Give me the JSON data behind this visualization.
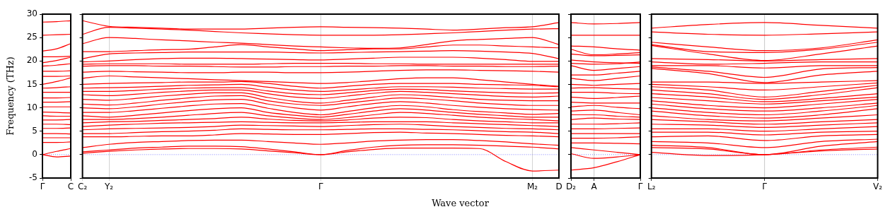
{
  "chart_data": [
    {
      "type": "line",
      "ylabel": "Frequency (THz)",
      "color": "#ff0000",
      "categories": [
        "Γ",
        null,
        "C"
      ],
      "ylim": [
        -5,
        30
      ],
      "yticks": [
        -5,
        0,
        5,
        10,
        15,
        20,
        25,
        30
      ],
      "ref_lines": [
        {
          "axis": "y",
          "value": 0,
          "color": "#8080ff",
          "line_style": "dotted"
        }
      ],
      "series": [
        {
          "values": [
            28.3,
            28.4,
            28.6
          ]
        },
        {
          "values": [
            25.5,
            25.6,
            25.7
          ]
        },
        {
          "values": [
            22.1,
            22.6,
            23.7
          ]
        },
        {
          "values": [
            20.9,
            20.9,
            21.0
          ]
        },
        {
          "values": [
            19.6,
            20.1,
            20.8
          ]
        },
        {
          "values": [
            18.9,
            19.1,
            19.4
          ]
        },
        {
          "values": [
            17.8,
            17.8,
            17.9
          ]
        },
        {
          "values": [
            16.7,
            16.7,
            16.8
          ]
        },
        {
          "values": [
            15.0,
            15.6,
            16.4
          ]
        },
        {
          "values": [
            14.2,
            14.3,
            14.5
          ]
        },
        {
          "values": [
            13.3,
            13.3,
            13.3
          ]
        },
        {
          "values": [
            12.1,
            12.1,
            12.2
          ]
        },
        {
          "values": [
            11.2,
            11.2,
            11.3
          ]
        },
        {
          "values": [
            10.2,
            10.2,
            10.2
          ]
        },
        {
          "values": [
            9.1,
            9.0,
            8.9
          ]
        },
        {
          "values": [
            8.3,
            8.2,
            8.2
          ]
        },
        {
          "values": [
            7.4,
            7.4,
            7.5
          ]
        },
        {
          "values": [
            6.5,
            6.5,
            6.4
          ]
        },
        {
          "values": [
            5.6,
            5.6,
            5.7
          ]
        },
        {
          "values": [
            4.5,
            4.5,
            4.4
          ]
        },
        {
          "values": [
            3.6,
            3.6,
            3.6
          ]
        },
        {
          "values": [
            2.6,
            2.6,
            2.7
          ]
        },
        {
          "values": [
            0,
            0.7,
            1.3
          ]
        },
        {
          "values": [
            0,
            -0.5,
            -0.3
          ]
        }
      ]
    },
    {
      "type": "line",
      "xlabel": "Wave vector",
      "color": "#ff0000",
      "grid": "x",
      "tick_labels": "x",
      "categories": [
        "C₂",
        "Y₂",
        null,
        null,
        null,
        null,
        null,
        null,
        null,
        "Γ",
        null,
        null,
        null,
        null,
        null,
        null,
        null,
        "M₂",
        "D"
      ],
      "ylim": [
        -5,
        30
      ],
      "yticks": [
        -5,
        0,
        5,
        10,
        15,
        20,
        25,
        30
      ],
      "ref_lines": [
        {
          "axis": "y",
          "value": 0,
          "color": "#8080ff",
          "line_style": "dotted"
        }
      ],
      "series": [
        {
          "values": [
            28.6,
            27.4,
            27.2,
            27.0,
            26.8,
            26.8,
            26.8,
            27.0,
            27.2,
            27.3,
            27.2,
            27.1,
            27.0,
            26.8,
            26.6,
            26.8,
            27.1,
            27.3,
            28.2
          ]
        },
        {
          "values": [
            25.7,
            27.2,
            27.0,
            26.8,
            26.6,
            26.3,
            26.0,
            25.8,
            25.6,
            25.5,
            25.5,
            25.5,
            25.6,
            25.8,
            26.0,
            26.3,
            26.6,
            26.8,
            26.9
          ]
        },
        {
          "values": [
            23.7,
            25.0,
            24.8,
            24.5,
            24.3,
            24.0,
            23.8,
            23.5,
            23.2,
            23.0,
            22.8,
            22.7,
            22.8,
            23.5,
            24.3,
            24.6,
            24.8,
            25.0,
            23.5
          ]
        },
        {
          "values": [
            22.0,
            22.0,
            22.2,
            22.4,
            22.5,
            23.0,
            23.5,
            23.0,
            22.6,
            22.2,
            22.4,
            22.6,
            22.6,
            23.0,
            23.4,
            23.4,
            23.2,
            23.0,
            22.8
          ]
        },
        {
          "values": [
            20.5,
            21.5,
            21.7,
            21.8,
            21.9,
            21.9,
            21.9,
            21.9,
            21.8,
            21.7,
            21.8,
            21.9,
            22.0,
            22.1,
            22.2,
            22.1,
            21.9,
            21.6,
            20.5
          ]
        },
        {
          "values": [
            19.8,
            20.0,
            20.3,
            20.5,
            20.6,
            20.6,
            20.5,
            20.4,
            20.3,
            20.2,
            20.4,
            20.6,
            20.8,
            20.8,
            20.8,
            20.6,
            20.3,
            19.9,
            19.9
          ]
        },
        {
          "values": [
            19.3,
            19.4,
            19.4,
            19.4,
            19.3,
            19.3,
            19.3,
            19.4,
            19.5,
            19.5,
            19.5,
            19.4,
            19.4,
            19.3,
            19.3,
            19.3,
            19.3,
            19.3,
            19.3
          ]
        },
        {
          "values": [
            18.9,
            19.0,
            19.0,
            18.9,
            18.9,
            18.8,
            18.7,
            18.7,
            18.8,
            18.8,
            18.9,
            18.9,
            19.0,
            19.0,
            18.9,
            18.9,
            18.8,
            18.8,
            18.9
          ]
        },
        {
          "values": [
            17.6,
            17.8,
            17.7,
            17.6,
            17.5,
            17.5,
            17.6,
            17.6,
            17.5,
            17.5,
            17.6,
            17.8,
            18.0,
            18.1,
            18.1,
            18.0,
            17.9,
            17.8,
            17.6
          ]
        },
        {
          "values": [
            16.3,
            16.8,
            16.6,
            16.4,
            16.2,
            16.0,
            15.8,
            15.6,
            15.4,
            15.2,
            15.4,
            15.8,
            16.2,
            16.4,
            16.4,
            16.0,
            15.5,
            15.0,
            14.6
          ]
        },
        {
          "values": [
            15.0,
            15.2,
            15.3,
            15.4,
            15.5,
            15.5,
            15.6,
            15.2,
            14.6,
            14.2,
            14.6,
            15.0,
            15.2,
            15.2,
            15.2,
            15.0,
            14.9,
            14.8,
            14.5
          ]
        },
        {
          "values": [
            14.2,
            14.3,
            14.4,
            14.6,
            14.8,
            14.9,
            15.0,
            14.4,
            13.8,
            13.5,
            13.8,
            14.2,
            14.5,
            14.5,
            14.4,
            14.2,
            14.1,
            14.0,
            14.0
          ]
        },
        {
          "values": [
            13.5,
            13.5,
            13.7,
            14.0,
            14.2,
            14.3,
            14.3,
            13.6,
            13.0,
            12.8,
            13.2,
            13.7,
            14.0,
            13.9,
            13.6,
            13.4,
            13.2,
            13.1,
            13.2
          ]
        },
        {
          "values": [
            12.8,
            12.6,
            12.9,
            13.3,
            13.6,
            13.8,
            13.8,
            13.0,
            12.3,
            12.0,
            12.5,
            13.1,
            13.5,
            13.3,
            13.0,
            12.7,
            12.4,
            12.3,
            12.5
          ]
        },
        {
          "values": [
            11.8,
            11.6,
            12.0,
            12.5,
            12.9,
            13.2,
            13.2,
            12.2,
            11.4,
            11.0,
            11.6,
            12.3,
            12.8,
            12.6,
            12.2,
            11.8,
            11.6,
            11.5,
            11.5
          ]
        },
        {
          "values": [
            10.8,
            10.6,
            11.0,
            11.6,
            12.1,
            12.5,
            12.6,
            11.5,
            10.8,
            10.5,
            11.0,
            11.6,
            12.1,
            11.9,
            11.5,
            11.0,
            10.7,
            10.5,
            10.5
          ]
        },
        {
          "values": [
            10.0,
            9.8,
            10.2,
            10.8,
            11.3,
            11.7,
            11.8,
            10.8,
            10.0,
            9.5,
            10.2,
            10.9,
            11.3,
            11.0,
            10.5,
            10.1,
            9.8,
            9.6,
            9.5
          ]
        },
        {
          "values": [
            9.0,
            9.0,
            9.4,
            9.9,
            10.4,
            10.8,
            10.9,
            9.9,
            9.0,
            8.5,
            9.2,
            10.0,
            10.5,
            10.2,
            9.6,
            9.2,
            8.9,
            8.6,
            8.8
          ]
        },
        {
          "values": [
            8.3,
            8.0,
            8.4,
            8.9,
            9.4,
            9.8,
            10.0,
            9.0,
            8.4,
            8.0,
            8.6,
            9.3,
            9.8,
            9.5,
            9.0,
            8.6,
            8.3,
            8.0,
            8.0
          ]
        },
        {
          "values": [
            7.5,
            7.5,
            7.7,
            8.0,
            8.4,
            8.8,
            9.0,
            8.3,
            7.8,
            7.5,
            7.9,
            8.5,
            9.0,
            8.8,
            8.4,
            8.0,
            7.7,
            7.5,
            7.2
          ]
        },
        {
          "values": [
            6.8,
            7.0,
            7.1,
            7.3,
            7.5,
            7.7,
            8.0,
            7.6,
            7.3,
            7.2,
            7.4,
            7.8,
            8.0,
            7.9,
            7.5,
            7.2,
            7.0,
            6.8,
            6.8
          ]
        },
        {
          "values": [
            6.0,
            6.3,
            6.5,
            6.7,
            6.8,
            6.9,
            7.0,
            6.9,
            6.8,
            6.8,
            6.9,
            7.0,
            7.0,
            7.0,
            6.8,
            6.6,
            6.4,
            6.2,
            6.0
          ]
        },
        {
          "values": [
            5.3,
            5.5,
            5.6,
            5.7,
            5.8,
            6.0,
            6.3,
            6.2,
            6.1,
            6.0,
            6.2,
            6.4,
            6.5,
            6.3,
            6.0,
            5.8,
            5.6,
            5.5,
            5.3
          ]
        },
        {
          "values": [
            4.5,
            4.5,
            4.7,
            4.9,
            5.0,
            5.2,
            5.5,
            5.4,
            5.3,
            5.3,
            5.4,
            5.5,
            5.5,
            5.4,
            5.3,
            5.1,
            4.9,
            4.8,
            4.5
          ]
        },
        {
          "values": [
            3.8,
            3.8,
            3.9,
            4.0,
            4.0,
            4.2,
            4.5,
            4.4,
            4.3,
            4.3,
            4.5,
            4.7,
            4.8,
            4.6,
            4.5,
            4.3,
            4.1,
            4.0,
            3.8
          ]
        },
        {
          "values": [
            1.5,
            2.2,
            2.6,
            2.8,
            3.0,
            3.1,
            3.1,
            2.8,
            2.5,
            2.2,
            2.5,
            2.9,
            3.1,
            3.2,
            3.2,
            3.0,
            2.7,
            2.3,
            2.0
          ]
        },
        {
          "values": [
            0.6,
            1.0,
            1.4,
            1.6,
            1.8,
            1.8,
            1.7,
            1.2,
            0.6,
            0,
            0.9,
            1.6,
            2.0,
            2.1,
            2.1,
            2.0,
            1.8,
            1.6,
            1.2
          ]
        },
        {
          "values": [
            0.3,
            0.7,
            1.0,
            1.2,
            1.3,
            1.3,
            1.2,
            0.8,
            0.4,
            0,
            0.6,
            1.1,
            1.4,
            1.4,
            1.4,
            1.3,
            -1.5,
            -3.5,
            -3.3
          ]
        }
      ]
    },
    {
      "type": "line",
      "color": "#ff0000",
      "tick_labels": "x",
      "categories": [
        "D₂",
        "A",
        null,
        "Γ"
      ],
      "ylim": [
        -5,
        30
      ],
      "yticks": [
        -5,
        0,
        5,
        10,
        15,
        20,
        25,
        30
      ],
      "ref_lines": [
        {
          "axis": "y",
          "value": 0,
          "color": "#8080ff",
          "line_style": "dotted"
        },
        {
          "axis": "x",
          "value": "A",
          "color": "#c8c8c8"
        }
      ],
      "series": [
        {
          "values": [
            28.2,
            27.9,
            28.0,
            28.2
          ]
        },
        {
          "values": [
            25.5,
            25.5,
            25.5,
            25.5
          ]
        },
        {
          "values": [
            23.2,
            23.0,
            22.6,
            22.3
          ]
        },
        {
          "values": [
            22.5,
            21.3,
            21.5,
            21.8
          ]
        },
        {
          "values": [
            21.5,
            21.1,
            21.2,
            21.3
          ]
        },
        {
          "values": [
            20.2,
            19.8,
            19.6,
            19.5
          ]
        },
        {
          "values": [
            19.5,
            19.3,
            19.4,
            19.8
          ]
        },
        {
          "values": [
            19.0,
            18.0,
            18.4,
            18.8
          ]
        },
        {
          "values": [
            17.0,
            17.0,
            17.4,
            17.8
          ]
        },
        {
          "values": [
            16.3,
            15.8,
            16.3,
            16.8
          ]
        },
        {
          "values": [
            15.0,
            14.8,
            15.0,
            15.2
          ]
        },
        {
          "values": [
            14.2,
            14.3,
            14.1,
            14.0
          ]
        },
        {
          "values": [
            13.3,
            13.3,
            13.1,
            13.0
          ]
        },
        {
          "values": [
            12.3,
            12.0,
            12.2,
            12.5
          ]
        },
        {
          "values": [
            11.2,
            11.0,
            11.0,
            11.0
          ]
        },
        {
          "values": [
            10.2,
            10.5,
            10.1,
            9.8
          ]
        },
        {
          "values": [
            9.3,
            9.5,
            9.0,
            8.5
          ]
        },
        {
          "values": [
            8.5,
            8.5,
            8.2,
            8.0
          ]
        },
        {
          "values": [
            7.5,
            7.8,
            7.6,
            7.5
          ]
        },
        {
          "values": [
            6.5,
            6.5,
            6.6,
            6.8
          ]
        },
        {
          "values": [
            5.5,
            5.5,
            5.6,
            5.7
          ]
        },
        {
          "values": [
            4.5,
            4.5,
            4.5,
            4.5
          ]
        },
        {
          "values": [
            3.5,
            3.5,
            3.6,
            3.8
          ]
        },
        {
          "values": [
            2.5,
            2.5,
            2.4,
            2.3
          ]
        },
        {
          "values": [
            1.5,
            1.0,
            0.5,
            0
          ]
        },
        {
          "values": [
            0.2,
            -0.8,
            -0.5,
            0
          ]
        },
        {
          "values": [
            -3.3,
            -2.8,
            -1.5,
            0
          ]
        }
      ]
    },
    {
      "type": "line",
      "color": "#ff0000",
      "tick_labels": "x",
      "categories": [
        "L₂",
        null,
        "Γ",
        null,
        "V₂"
      ],
      "ylim": [
        -5,
        30
      ],
      "yticks": [
        -5,
        0,
        5,
        10,
        15,
        20,
        25,
        30
      ],
      "ref_lines": [
        {
          "axis": "y",
          "value": 0,
          "color": "#8080ff",
          "line_style": "dotted"
        },
        {
          "axis": "x",
          "value": "Γ",
          "color": "#c8c8c8"
        }
      ],
      "series": [
        {
          "values": [
            27.0,
            27.8,
            28.2,
            27.6,
            27.0
          ]
        },
        {
          "values": [
            26.2,
            25.7,
            25.5,
            25.8,
            26.2
          ]
        },
        {
          "values": [
            24.0,
            23.0,
            22.2,
            22.8,
            24.5
          ]
        },
        {
          "values": [
            23.5,
            22.0,
            21.8,
            22.5,
            24.0
          ]
        },
        {
          "values": [
            23.3,
            21.5,
            20.1,
            21.5,
            23.2
          ]
        },
        {
          "values": [
            20.5,
            20.3,
            20.0,
            20.3,
            20.5
          ]
        },
        {
          "values": [
            19.8,
            19.3,
            19.5,
            19.8,
            19.8
          ]
        },
        {
          "values": [
            19.0,
            19.0,
            18.5,
            19.0,
            19.0
          ]
        },
        {
          "values": [
            18.7,
            17.8,
            16.5,
            18.3,
            18.6
          ]
        },
        {
          "values": [
            18.4,
            17.3,
            15.4,
            17.0,
            17.8
          ]
        },
        {
          "values": [
            15.5,
            15.5,
            15.2,
            15.5,
            15.8
          ]
        },
        {
          "values": [
            15.0,
            14.5,
            13.8,
            14.5,
            15.3
          ]
        },
        {
          "values": [
            14.5,
            13.8,
            12.3,
            13.5,
            14.8
          ]
        },
        {
          "values": [
            13.8,
            13.0,
            11.8,
            12.8,
            14.3
          ]
        },
        {
          "values": [
            13.0,
            12.3,
            11.3,
            12.0,
            13.0
          ]
        },
        {
          "values": [
            12.2,
            11.5,
            10.8,
            11.5,
            12.3
          ]
        },
        {
          "values": [
            11.5,
            10.5,
            10.0,
            10.8,
            11.8
          ]
        },
        {
          "values": [
            10.8,
            9.8,
            9.3,
            10.0,
            11.0
          ]
        },
        {
          "values": [
            10.0,
            9.0,
            8.5,
            9.3,
            10.5
          ]
        },
        {
          "values": [
            9.3,
            8.3,
            7.8,
            8.5,
            9.8
          ]
        },
        {
          "values": [
            8.3,
            7.5,
            7.2,
            7.8,
            8.5
          ]
        },
        {
          "values": [
            7.5,
            7.0,
            6.5,
            7.0,
            7.5
          ]
        },
        {
          "values": [
            6.5,
            6.3,
            5.8,
            6.3,
            6.8
          ]
        },
        {
          "values": [
            5.5,
            5.5,
            5.0,
            5.5,
            6.0
          ]
        },
        {
          "values": [
            4.8,
            4.8,
            4.2,
            4.8,
            5.0
          ]
        },
        {
          "values": [
            3.8,
            4.0,
            3.0,
            4.0,
            4.3
          ]
        },
        {
          "values": [
            2.8,
            2.5,
            1.5,
            2.8,
            3.3
          ]
        },
        {
          "values": [
            2.0,
            1.5,
            0,
            1.8,
            2.8
          ]
        },
        {
          "values": [
            1.5,
            1.2,
            0,
            1.0,
            1.6
          ]
        },
        {
          "values": [
            0.5,
            -0.2,
            0,
            0.8,
            1.2
          ]
        }
      ]
    }
  ]
}
